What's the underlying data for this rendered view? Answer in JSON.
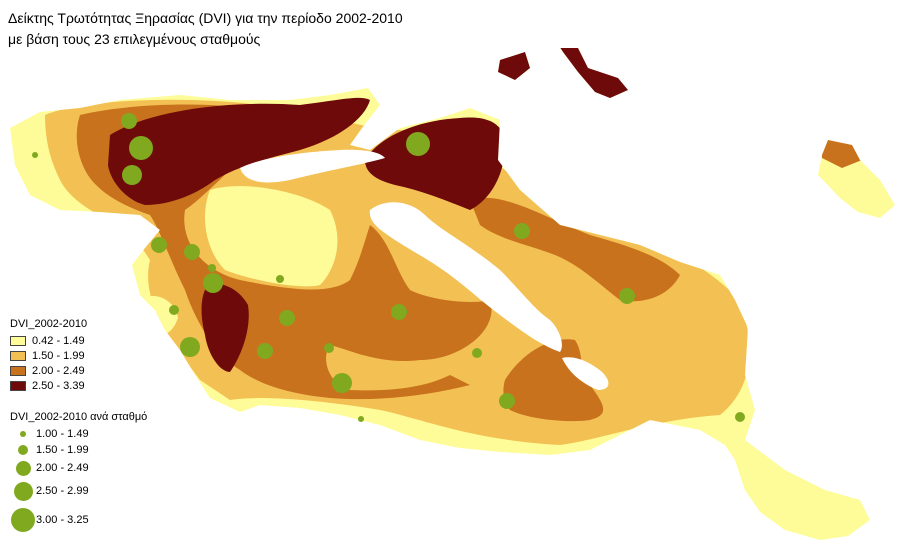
{
  "title": {
    "line1": "Δείκτης Τρωτότητας Ξηρασίας (DVI) για την περίοδο 2002-2010",
    "line2": "με βάση τους 23 επιλεγμένους σταθμούς"
  },
  "colors": {
    "class1": "#fdfc99",
    "class2": "#f3c153",
    "class3": "#c9721e",
    "class4": "#6f0a0a",
    "station": "#80a920"
  },
  "legend_zones": {
    "heading": "DVI_2002-2010",
    "items": [
      {
        "label": "0.42 - 1.49",
        "color": "#fdfc99"
      },
      {
        "label": "1.50 - 1.99",
        "color": "#f3c153"
      },
      {
        "label": "2.00 - 2.49",
        "color": "#c9721e"
      },
      {
        "label": "2.50 - 3.39",
        "color": "#6f0a0a"
      }
    ]
  },
  "legend_stations": {
    "heading": "DVI_2002-2010 ανά σταθμό",
    "items": [
      {
        "label": "1.00 - 1.49",
        "size_class": 1
      },
      {
        "label": "1.50 - 1.99",
        "size_class": 2
      },
      {
        "label": "2.00 - 2.49",
        "size_class": 3
      },
      {
        "label": "2.50 - 2.99",
        "size_class": 4
      },
      {
        "label": "3.00 - 3.25",
        "size_class": 5
      }
    ]
  }
}
